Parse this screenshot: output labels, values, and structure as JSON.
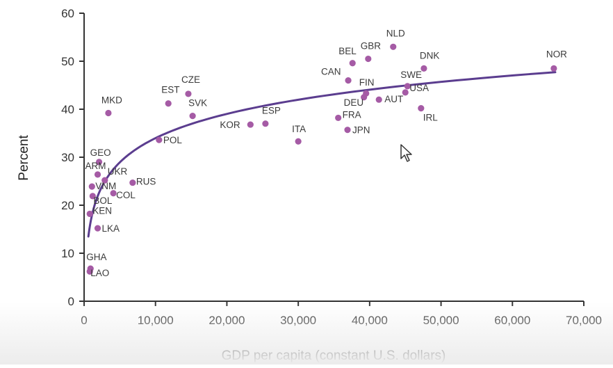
{
  "chart_data": {
    "type": "scatter",
    "xlabel": "GDP per capita (constant U.S. dollars)",
    "ylabel": "Percent",
    "xlim": [
      0,
      70000
    ],
    "ylim": [
      0,
      60
    ],
    "x_ticks": [
      0,
      10000,
      20000,
      30000,
      40000,
      50000,
      60000,
      70000
    ],
    "x_tick_labels": [
      "0",
      "10,000",
      "20,000",
      "30,000",
      "40,000",
      "50,000",
      "60,000",
      "70,000"
    ],
    "y_ticks": [
      0,
      10,
      20,
      30,
      40,
      50,
      60
    ],
    "y_tick_labels": [
      "0",
      "10",
      "20",
      "30",
      "40",
      "50",
      "60"
    ],
    "grid": false,
    "colors": {
      "points": "#a55ba5",
      "curve": "#5b3d8f",
      "axis": "#333333"
    },
    "points": [
      {
        "label": "NOR",
        "x": 65800,
        "y": 48.5
      },
      {
        "label": "NLD",
        "x": 43300,
        "y": 53.0
      },
      {
        "label": "GBR",
        "x": 39800,
        "y": 50.5
      },
      {
        "label": "BEL",
        "x": 37600,
        "y": 49.6
      },
      {
        "label": "DNK",
        "x": 47600,
        "y": 48.5
      },
      {
        "label": "CAN",
        "x": 37000,
        "y": 46.0
      },
      {
        "label": "SWE",
        "x": 45300,
        "y": 44.8
      },
      {
        "label": "FIN",
        "x": 39500,
        "y": 43.3
      },
      {
        "label": "USA",
        "x": 45000,
        "y": 43.5
      },
      {
        "label": "DEU",
        "x": 39200,
        "y": 42.5
      },
      {
        "label": "AUT",
        "x": 41300,
        "y": 42.0
      },
      {
        "label": "IRL",
        "x": 47200,
        "y": 40.2
      },
      {
        "label": "FRA",
        "x": 35600,
        "y": 38.2
      },
      {
        "label": "JPN",
        "x": 36900,
        "y": 35.7
      },
      {
        "label": "ITA",
        "x": 30000,
        "y": 33.3
      },
      {
        "label": "ESP",
        "x": 25400,
        "y": 37.0
      },
      {
        "label": "KOR",
        "x": 23300,
        "y": 36.8
      },
      {
        "label": "CZE",
        "x": 14600,
        "y": 43.2
      },
      {
        "label": "EST",
        "x": 11800,
        "y": 41.2
      },
      {
        "label": "SVK",
        "x": 15200,
        "y": 38.6
      },
      {
        "label": "POL",
        "x": 10500,
        "y": 33.6
      },
      {
        "label": "MKD",
        "x": 3400,
        "y": 39.2
      },
      {
        "label": "GEO",
        "x": 2100,
        "y": 29.0
      },
      {
        "label": "ARM",
        "x": 1900,
        "y": 26.4
      },
      {
        "label": "UKR",
        "x": 2900,
        "y": 25.2
      },
      {
        "label": "RUS",
        "x": 6800,
        "y": 24.7
      },
      {
        "label": "VNM",
        "x": 1100,
        "y": 23.9
      },
      {
        "label": "COL",
        "x": 4100,
        "y": 22.5
      },
      {
        "label": "BOL",
        "x": 1200,
        "y": 21.9
      },
      {
        "label": "KEN",
        "x": 800,
        "y": 18.2
      },
      {
        "label": "LKA",
        "x": 1900,
        "y": 15.2
      },
      {
        "label": "GHA",
        "x": 900,
        "y": 6.8
      },
      {
        "label": "LAO",
        "x": 800,
        "y": 6.2
      }
    ],
    "trend": {
      "type": "logarithmic",
      "x_range": [
        600,
        66000
      ]
    }
  }
}
